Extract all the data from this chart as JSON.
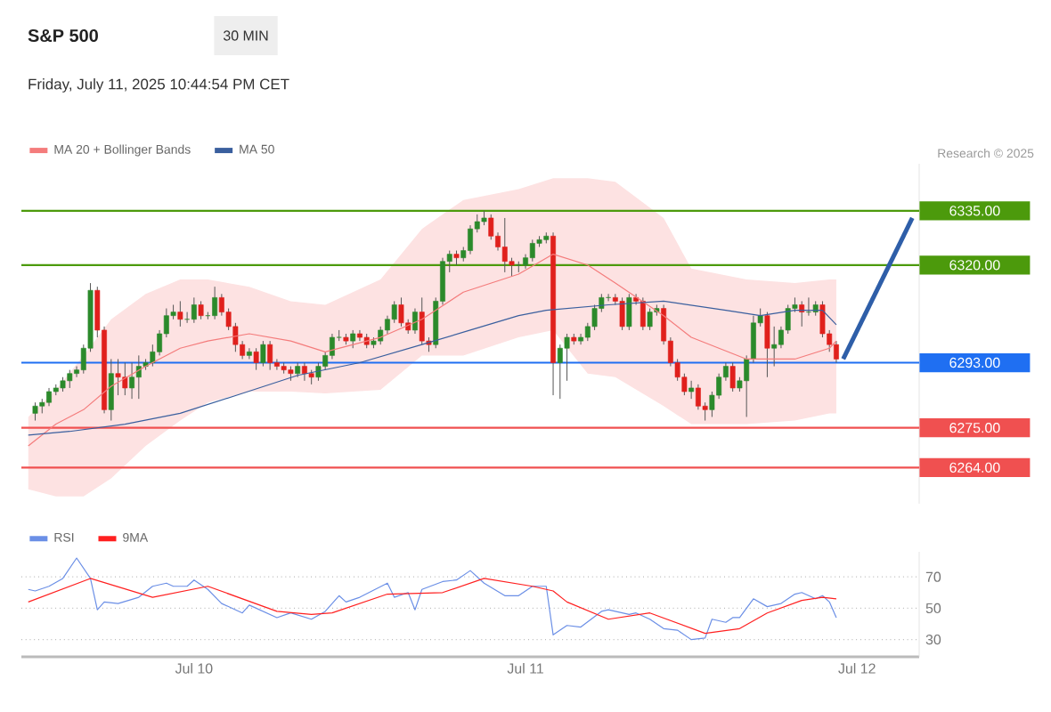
{
  "chart_data": [
    {
      "type": "candlestick",
      "title": "S&P 500",
      "subtitle": "30 MIN",
      "annotations": [
        "Friday, July 11, 2025 10:44:54 PM CET",
        "Research © 2025"
      ],
      "legend": "top left",
      "tick_labels": "y",
      "xlim": [
        "2025-07-09T11:30",
        "2025-07-12T04:30"
      ],
      "ylim": [
        6254,
        6348
      ],
      "yticks": [
        {
          "value": 6335,
          "label": "6335.00"
        },
        {
          "value": 6320,
          "label": "6320.00"
        },
        {
          "value": 6293,
          "label": "6293.00"
        },
        {
          "value": 6275,
          "label": "6275.00"
        },
        {
          "value": 6264,
          "label": "6264.00"
        }
      ],
      "x": [
        "2025-07-09T12:30",
        "2025-07-09T13:00",
        "2025-07-09T13:30",
        "2025-07-09T14:00",
        "2025-07-09T14:30",
        "2025-07-09T15:00",
        "2025-07-09T15:30",
        "2025-07-09T16:00",
        "2025-07-09T16:30",
        "2025-07-09T17:00",
        "2025-07-09T17:30",
        "2025-07-09T18:00",
        "2025-07-09T18:30",
        "2025-07-09T19:00",
        "2025-07-09T19:30",
        "2025-07-09T20:00",
        "2025-07-09T20:30",
        "2025-07-09T21:00",
        "2025-07-09T21:30",
        "2025-07-09T22:00",
        "2025-07-09T22:30",
        "2025-07-09T23:00",
        "2025-07-09T23:30",
        "2025-07-10T00:00",
        "2025-07-10T00:30",
        "2025-07-10T01:00",
        "2025-07-10T01:30",
        "2025-07-10T02:00",
        "2025-07-10T02:30",
        "2025-07-10T03:00",
        "2025-07-10T03:30",
        "2025-07-10T04:00",
        "2025-07-10T04:30",
        "2025-07-10T05:00",
        "2025-07-10T05:30",
        "2025-07-10T06:00",
        "2025-07-10T06:30",
        "2025-07-10T07:00",
        "2025-07-10T07:30",
        "2025-07-10T08:00",
        "2025-07-10T08:30",
        "2025-07-10T09:00",
        "2025-07-10T09:30",
        "2025-07-10T10:00",
        "2025-07-10T10:30",
        "2025-07-10T11:00",
        "2025-07-10T11:30",
        "2025-07-10T12:00",
        "2025-07-10T12:30",
        "2025-07-10T13:00",
        "2025-07-10T13:30",
        "2025-07-10T14:00",
        "2025-07-10T14:30",
        "2025-07-10T15:00",
        "2025-07-10T15:30",
        "2025-07-10T16:00",
        "2025-07-10T16:30",
        "2025-07-10T17:00",
        "2025-07-10T17:30",
        "2025-07-10T18:00",
        "2025-07-10T18:30",
        "2025-07-10T19:00",
        "2025-07-10T19:30",
        "2025-07-10T20:00",
        "2025-07-10T20:30",
        "2025-07-10T21:00",
        "2025-07-10T21:30",
        "2025-07-10T22:00",
        "2025-07-10T22:30",
        "2025-07-10T23:00",
        "2025-07-10T23:30",
        "2025-07-11T00:00",
        "2025-07-11T00:30",
        "2025-07-11T01:00",
        "2025-07-11T01:30",
        "2025-07-11T02:00",
        "2025-07-11T02:30",
        "2025-07-11T03:00",
        "2025-07-11T03:30",
        "2025-07-11T04:00",
        "2025-07-11T04:30",
        "2025-07-11T05:00",
        "2025-07-11T05:30",
        "2025-07-11T06:00",
        "2025-07-11T06:30",
        "2025-07-11T07:00",
        "2025-07-11T07:30",
        "2025-07-11T08:00",
        "2025-07-11T08:30",
        "2025-07-11T09:00",
        "2025-07-11T09:30",
        "2025-07-11T10:00",
        "2025-07-11T10:30",
        "2025-07-11T11:00",
        "2025-07-11T11:30",
        "2025-07-11T12:00",
        "2025-07-11T12:30",
        "2025-07-11T13:00",
        "2025-07-11T13:30",
        "2025-07-11T14:00",
        "2025-07-11T14:30",
        "2025-07-11T15:00",
        "2025-07-11T15:30",
        "2025-07-11T16:00",
        "2025-07-11T16:30",
        "2025-07-11T17:00",
        "2025-07-11T17:30",
        "2025-07-11T18:00",
        "2025-07-11T18:30",
        "2025-07-11T19:00",
        "2025-07-11T19:30",
        "2025-07-11T20:00",
        "2025-07-11T20:30",
        "2025-07-11T21:00",
        "2025-07-11T21:30",
        "2025-07-11T22:00",
        "2025-07-11T22:30"
      ],
      "ohlc": [
        [
          6279,
          6282,
          6277,
          6281
        ],
        [
          6281,
          6283,
          6279,
          6282
        ],
        [
          6282,
          6286,
          6281,
          6285
        ],
        [
          6285,
          6287,
          6284,
          6286
        ],
        [
          6286,
          6289,
          6285,
          6288
        ],
        [
          6288,
          6291,
          6286,
          6290
        ],
        [
          6290,
          6292,
          6289,
          6291
        ],
        [
          6291,
          6298,
          6290,
          6297
        ],
        [
          6297,
          6315,
          6296,
          6313
        ],
        [
          6313,
          6314,
          6300,
          6302
        ],
        [
          6302,
          6303,
          6279,
          6280
        ],
        [
          6280,
          6294,
          6277,
          6290
        ],
        [
          6290,
          6294,
          6284,
          6289
        ],
        [
          6289,
          6293,
          6284,
          6286
        ],
        [
          6286,
          6293,
          6283,
          6289
        ],
        [
          6289,
          6295,
          6283,
          6292
        ],
        [
          6292,
          6294,
          6291,
          6293
        ],
        [
          6293,
          6298,
          6292,
          6296
        ],
        [
          6296,
          6302,
          6295,
          6301
        ],
        [
          6301,
          6308,
          6300,
          6306
        ],
        [
          6306,
          6309,
          6305,
          6307
        ],
        [
          6307,
          6310,
          6303,
          6305
        ],
        [
          6305,
          6307,
          6304,
          6305
        ],
        [
          6305,
          6311,
          6304,
          6309
        ],
        [
          6309,
          6310,
          6305,
          6306
        ],
        [
          6306,
          6307,
          6305,
          6306
        ],
        [
          6306,
          6314,
          6305,
          6311
        ],
        [
          6311,
          6312,
          6306,
          6307
        ],
        [
          6307,
          6308,
          6302,
          6303
        ],
        [
          6303,
          6304,
          6296,
          6298
        ],
        [
          6298,
          6299,
          6294,
          6295
        ],
        [
          6295,
          6297,
          6294,
          6296
        ],
        [
          6296,
          6297,
          6291,
          6293
        ],
        [
          6293,
          6299,
          6292,
          6298
        ],
        [
          6298,
          6299,
          6291,
          6293
        ],
        [
          6293,
          6294,
          6291,
          6292
        ],
        [
          6292,
          6293,
          6290,
          6291
        ],
        [
          6291,
          6292,
          6288,
          6290
        ],
        [
          6290,
          6293,
          6289,
          6292
        ],
        [
          6292,
          6293,
          6288,
          6290
        ],
        [
          6290,
          6291,
          6287,
          6289
        ],
        [
          6289,
          6293,
          6288,
          6292
        ],
        [
          6292,
          6296,
          6291,
          6295
        ],
        [
          6295,
          6301,
          6294,
          6300
        ],
        [
          6300,
          6302,
          6299,
          6300
        ],
        [
          6300,
          6301,
          6298,
          6299
        ],
        [
          6299,
          6302,
          6297,
          6301
        ],
        [
          6301,
          6302,
          6299,
          6300
        ],
        [
          6300,
          6301,
          6297,
          6298
        ],
        [
          6298,
          6300,
          6297,
          6299
        ],
        [
          6299,
          6303,
          6298,
          6302
        ],
        [
          6302,
          6306,
          6301,
          6305
        ],
        [
          6305,
          6310,
          6304,
          6309
        ],
        [
          6309,
          6311,
          6303,
          6304
        ],
        [
          6304,
          6305,
          6301,
          6302
        ],
        [
          6302,
          6308,
          6301,
          6307
        ],
        [
          6307,
          6311,
          6298,
          6299
        ],
        [
          6299,
          6300,
          6296,
          6298
        ],
        [
          6298,
          6311,
          6297,
          6310
        ],
        [
          6310,
          6322,
          6309,
          6321
        ],
        [
          6321,
          6324,
          6318,
          6323
        ],
        [
          6323,
          6324,
          6320,
          6322
        ],
        [
          6322,
          6325,
          6321,
          6324
        ],
        [
          6324,
          6331,
          6323,
          6330
        ],
        [
          6330,
          6334,
          6329,
          6332
        ],
        [
          6332,
          6335,
          6331,
          6333
        ],
        [
          6333,
          6334,
          6327,
          6328
        ],
        [
          6328,
          6329,
          6324,
          6325
        ],
        [
          6325,
          6333,
          6318,
          6321
        ],
        [
          6321,
          6322,
          6317,
          6320
        ],
        [
          6320,
          6321,
          6318,
          6320
        ],
        [
          6320,
          6323,
          6319,
          6322
        ],
        [
          6322,
          6327,
          6321,
          6326
        ],
        [
          6326,
          6328,
          6325,
          6327
        ],
        [
          6327,
          6329,
          6326,
          6328
        ],
        [
          6328,
          6329,
          6284,
          6293
        ],
        [
          6293,
          6298,
          6283,
          6297
        ],
        [
          6297,
          6301,
          6288,
          6300
        ],
        [
          6300,
          6301,
          6298,
          6299
        ],
        [
          6299,
          6301,
          6298,
          6300
        ],
        [
          6300,
          6304,
          6299,
          6303
        ],
        [
          6303,
          6309,
          6302,
          6308
        ],
        [
          6308,
          6312,
          6307,
          6311
        ],
        [
          6311,
          6312,
          6310,
          6311
        ],
        [
          6311,
          6312,
          6309,
          6310
        ],
        [
          6310,
          6311,
          6302,
          6303
        ],
        [
          6303,
          6312,
          6302,
          6311
        ],
        [
          6311,
          6312,
          6309,
          6310
        ],
        [
          6310,
          6311,
          6302,
          6303
        ],
        [
          6303,
          6308,
          6302,
          6307
        ],
        [
          6307,
          6309,
          6306,
          6308
        ],
        [
          6308,
          6309,
          6298,
          6299
        ],
        [
          6299,
          6300,
          6292,
          6293
        ],
        [
          6293,
          6294,
          6288,
          6289
        ],
        [
          6289,
          6290,
          6284,
          6285
        ],
        [
          6285,
          6288,
          6283,
          6286
        ],
        [
          6286,
          6287,
          6280,
          6281
        ],
        [
          6281,
          6282,
          6277,
          6280
        ],
        [
          6280,
          6285,
          6278,
          6284
        ],
        [
          6284,
          6290,
          6283,
          6289
        ],
        [
          6289,
          6293,
          6288,
          6292
        ],
        [
          6292,
          6293,
          6285,
          6286
        ],
        [
          6286,
          6289,
          6285,
          6288
        ],
        [
          6288,
          6295,
          6278,
          6294
        ],
        [
          6294,
          6306,
          6293,
          6304
        ],
        [
          6304,
          6308,
          6303,
          6306
        ],
        [
          6306,
          6307,
          6289,
          6297
        ],
        [
          6297,
          6303,
          6292,
          6298
        ],
        [
          6298,
          6303,
          6297,
          6302
        ],
        [
          6302,
          6309,
          6301,
          6308
        ],
        [
          6308,
          6311,
          6307,
          6309
        ],
        [
          6309,
          6310,
          6303,
          6307
        ],
        [
          6307,
          6311,
          6306,
          6307
        ],
        [
          6307,
          6310,
          6306,
          6309
        ],
        [
          6309,
          6310,
          6300,
          6301
        ],
        [
          6301,
          6302,
          6296,
          6298
        ],
        [
          6298,
          6299,
          6293,
          6294
        ]
      ],
      "series": [
        {
          "name": "MA 20 + Bollinger Bands",
          "type": "line",
          "color": "#f47c7c",
          "x": [
            "2025-07-09T12:00",
            "2025-07-09T14:00",
            "2025-07-09T16:00",
            "2025-07-09T18:00",
            "2025-07-09T20:30",
            "2025-07-09T23:00",
            "2025-07-10T01:00",
            "2025-07-10T04:00",
            "2025-07-10T07:00",
            "2025-07-10T09:30",
            "2025-07-10T13:30",
            "2025-07-10T16:30",
            "2025-07-10T19:30",
            "2025-07-10T23:30",
            "2025-07-11T02:00",
            "2025-07-11T04:30",
            "2025-07-11T06:30",
            "2025-07-11T10:00",
            "2025-07-11T12:00",
            "2025-07-11T16:00",
            "2025-07-11T19:30",
            "2025-07-11T22:00",
            "2025-07-11T22:30"
          ],
          "values": [
            6270,
            6276,
            6280,
            6286.5,
            6292,
            6297,
            6299,
            6301,
            6299,
            6296,
            6300,
            6305,
            6312.5,
            6317.5,
            6323,
            6320,
            6315,
            6306,
            6300,
            6294,
            6294,
            6297,
            6299
          ],
          "lower": [
            6258,
            6256,
            6256,
            6261,
            6270,
            6277,
            6282,
            6285,
            6285,
            6284.5,
            6285.5,
            6295,
            6295,
            6300,
            6302,
            6290,
            6289,
            6281,
            6276,
            6276,
            6277,
            6279,
            6279
          ],
          "upper": [
            6278,
            6285.5,
            6295,
            6305,
            6312,
            6316,
            6316,
            6314,
            6310,
            6309,
            6316,
            6330,
            6338,
            6341,
            6344,
            6344,
            6343,
            6333,
            6319,
            6316,
            6315,
            6316,
            6316
          ]
        },
        {
          "name": "MA 50",
          "type": "line",
          "color": "#3a5f9e",
          "x": [
            "2025-07-09T12:00",
            "2025-07-09T15:00",
            "2025-07-09T19:00",
            "2025-07-09T23:00",
            "2025-07-10T03:30",
            "2025-07-10T07:30",
            "2025-07-10T12:00",
            "2025-07-10T16:30",
            "2025-07-10T20:00",
            "2025-07-10T23:30",
            "2025-07-11T01:30",
            "2025-07-11T06:00",
            "2025-07-11T10:00",
            "2025-07-11T14:30",
            "2025-07-11T17:00",
            "2025-07-11T19:30",
            "2025-07-11T21:30",
            "2025-07-11T22:30"
          ],
          "values": [
            6273,
            6274,
            6276,
            6279,
            6284.5,
            6289.5,
            6293,
            6298,
            6302,
            6306,
            6307.5,
            6309,
            6310,
            6307.5,
            6306,
            6307.5,
            6307.5,
            6303.5
          ]
        },
        {
          "type": "line",
          "color": "#2e5ea8",
          "x": [
            "2025-07-11T23:00",
            "2025-07-12T04:00"
          ],
          "values": [
            6294,
            6333
          ]
        }
      ],
      "ref_lines": [
        {
          "axis": "y",
          "value": 6335,
          "color": "#4c9a0c"
        },
        {
          "axis": "y",
          "value": 6320,
          "color": "#4c9a0c"
        },
        {
          "axis": "y",
          "value": 6293,
          "color": "#1f6ff2"
        },
        {
          "axis": "y",
          "value": 6275,
          "color": "#f05050"
        },
        {
          "axis": "y",
          "value": 6264,
          "color": "#f05050"
        }
      ]
    },
    {
      "type": "line",
      "legend": "top left",
      "grid": "y",
      "xlim": [
        "2025-07-09T11:30",
        "2025-07-12T04:30"
      ],
      "ylim": [
        19,
        86
      ],
      "yticks": [
        30,
        50,
        70
      ],
      "xticks": [
        {
          "value": "2025-07-10",
          "label": "Jul 10"
        },
        {
          "value": "2025-07-11",
          "label": "Jul 11"
        },
        {
          "value": "2025-07-12",
          "label": "Jul 12"
        }
      ],
      "series": [
        {
          "name": "RSI",
          "color": "#6b8fe6",
          "x": [
            "2025-07-09T12:00",
            "2025-07-09T12:30",
            "2025-07-09T13:30",
            "2025-07-09T14:30",
            "2025-07-09T15:30",
            "2025-07-09T16:30",
            "2025-07-09T17:00",
            "2025-07-09T17:30",
            "2025-07-09T18:30",
            "2025-07-09T20:00",
            "2025-07-09T21:00",
            "2025-07-09T22:00",
            "2025-07-09T22:30",
            "2025-07-09T23:30",
            "2025-07-10T00:00",
            "2025-07-10T01:00",
            "2025-07-10T02:00",
            "2025-07-10T03:30",
            "2025-07-10T04:00",
            "2025-07-10T05:00",
            "2025-07-10T06:00",
            "2025-07-10T07:00",
            "2025-07-10T08:30",
            "2025-07-10T09:30",
            "2025-07-10T10:30",
            "2025-07-10T11:00",
            "2025-07-10T12:00",
            "2025-07-10T14:00",
            "2025-07-10T14:30",
            "2025-07-10T15:30",
            "2025-07-10T16:00",
            "2025-07-10T16:30",
            "2025-07-10T18:00",
            "2025-07-10T19:00",
            "2025-07-10T20:00",
            "2025-07-10T21:00",
            "2025-07-10T22:30",
            "2025-07-10T23:30",
            "2025-07-11T00:30",
            "2025-07-11T01:30",
            "2025-07-11T02:00",
            "2025-07-11T03:00",
            "2025-07-11T04:00",
            "2025-07-11T05:30",
            "2025-07-11T06:00",
            "2025-07-11T07:30",
            "2025-07-11T08:00",
            "2025-07-11T09:00",
            "2025-07-11T10:00",
            "2025-07-11T11:00",
            "2025-07-11T12:00",
            "2025-07-11T13:00",
            "2025-07-11T13:30",
            "2025-07-11T14:30",
            "2025-07-11T15:00",
            "2025-07-11T15:30",
            "2025-07-11T16:30",
            "2025-07-11T17:30",
            "2025-07-11T18:30",
            "2025-07-11T19:30",
            "2025-07-11T20:00",
            "2025-07-11T21:00",
            "2025-07-11T21:30",
            "2025-07-11T22:00",
            "2025-07-11T22:30"
          ],
          "values": [
            62,
            61,
            64,
            69,
            82,
            69,
            49,
            54,
            53,
            57,
            64,
            66,
            64,
            64,
            68,
            62,
            53,
            47,
            52,
            48,
            44,
            47,
            43,
            48,
            58,
            54,
            57,
            66,
            57,
            60,
            49,
            62,
            67,
            68,
            74,
            66,
            58,
            58,
            64,
            64,
            33,
            39,
            38,
            48,
            49,
            46,
            47,
            43,
            37,
            36,
            30,
            31,
            43,
            41,
            44,
            44,
            56,
            51,
            53,
            59,
            60,
            56,
            58,
            54,
            44
          ]
        },
        {
          "name": "9MA",
          "color": "#ff2020",
          "x": [
            "2025-07-09T12:00",
            "2025-07-09T16:30",
            "2025-07-09T21:00",
            "2025-07-10T01:00",
            "2025-07-10T06:00",
            "2025-07-10T08:30",
            "2025-07-10T10:00",
            "2025-07-10T14:00",
            "2025-07-10T18:00",
            "2025-07-10T21:00",
            "2025-07-11T00:30",
            "2025-07-11T02:00",
            "2025-07-11T03:00",
            "2025-07-11T06:00",
            "2025-07-11T09:00",
            "2025-07-11T13:00",
            "2025-07-11T15:30",
            "2025-07-11T17:30",
            "2025-07-11T20:00",
            "2025-07-11T21:30",
            "2025-07-11T22:30"
          ],
          "values": [
            54,
            69,
            57,
            64,
            48,
            46,
            47,
            59,
            60,
            69,
            64,
            61,
            54,
            43,
            47,
            34,
            37,
            47,
            55,
            57,
            56
          ]
        }
      ]
    }
  ]
}
